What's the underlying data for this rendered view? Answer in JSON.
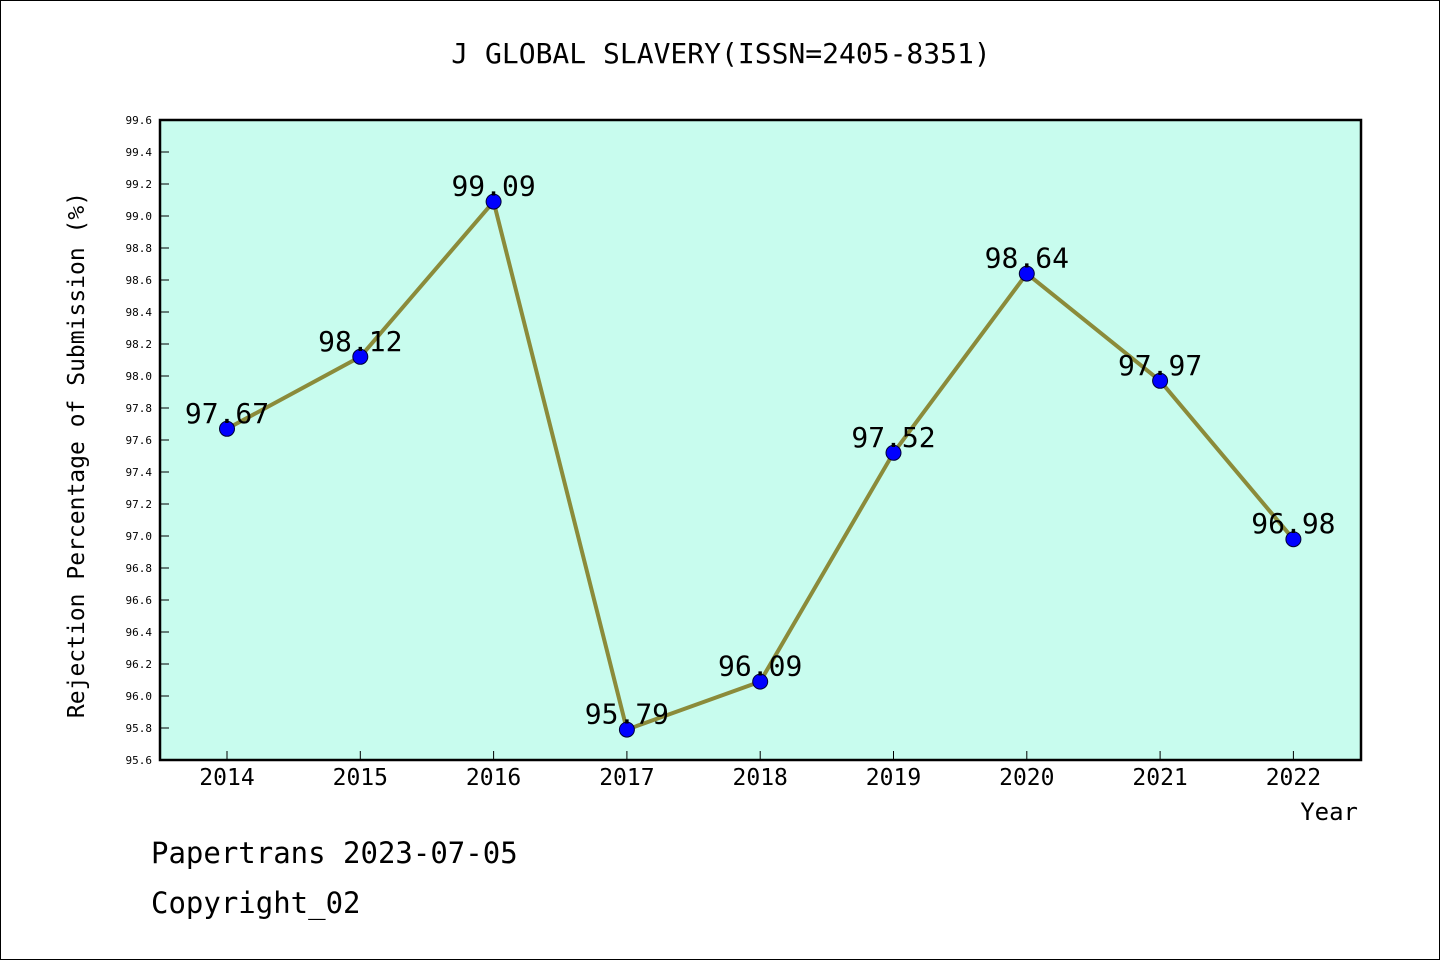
{
  "title": "J GLOBAL SLAVERY(ISSN=2405-8351)",
  "footer": {
    "line1": "Papertrans 2023-07-05",
    "line2": "Copyright_02"
  },
  "chart_data": {
    "type": "line",
    "title": "J GLOBAL SLAVERY(ISSN=2405-8351)",
    "xlabel": "Year",
    "ylabel": "Rejection Percentage of Submission (%)",
    "categories": [
      "2014",
      "2015",
      "2016",
      "2017",
      "2018",
      "2019",
      "2020",
      "2021",
      "2022"
    ],
    "values": [
      97.67,
      98.12,
      99.09,
      95.79,
      96.09,
      97.52,
      98.64,
      97.97,
      96.98
    ],
    "data_labels": [
      "97.67",
      "98.12",
      "99.09",
      "95.79",
      "96.09",
      "97.52",
      "98.64",
      "97.97",
      "96.98"
    ],
    "ylim": [
      95.6,
      99.6
    ],
    "ytick_step": 0.2,
    "grid": false,
    "colors": {
      "plot_background": "#c8fcee",
      "line": "#8b8b3a",
      "marker": "#0000ff"
    }
  }
}
